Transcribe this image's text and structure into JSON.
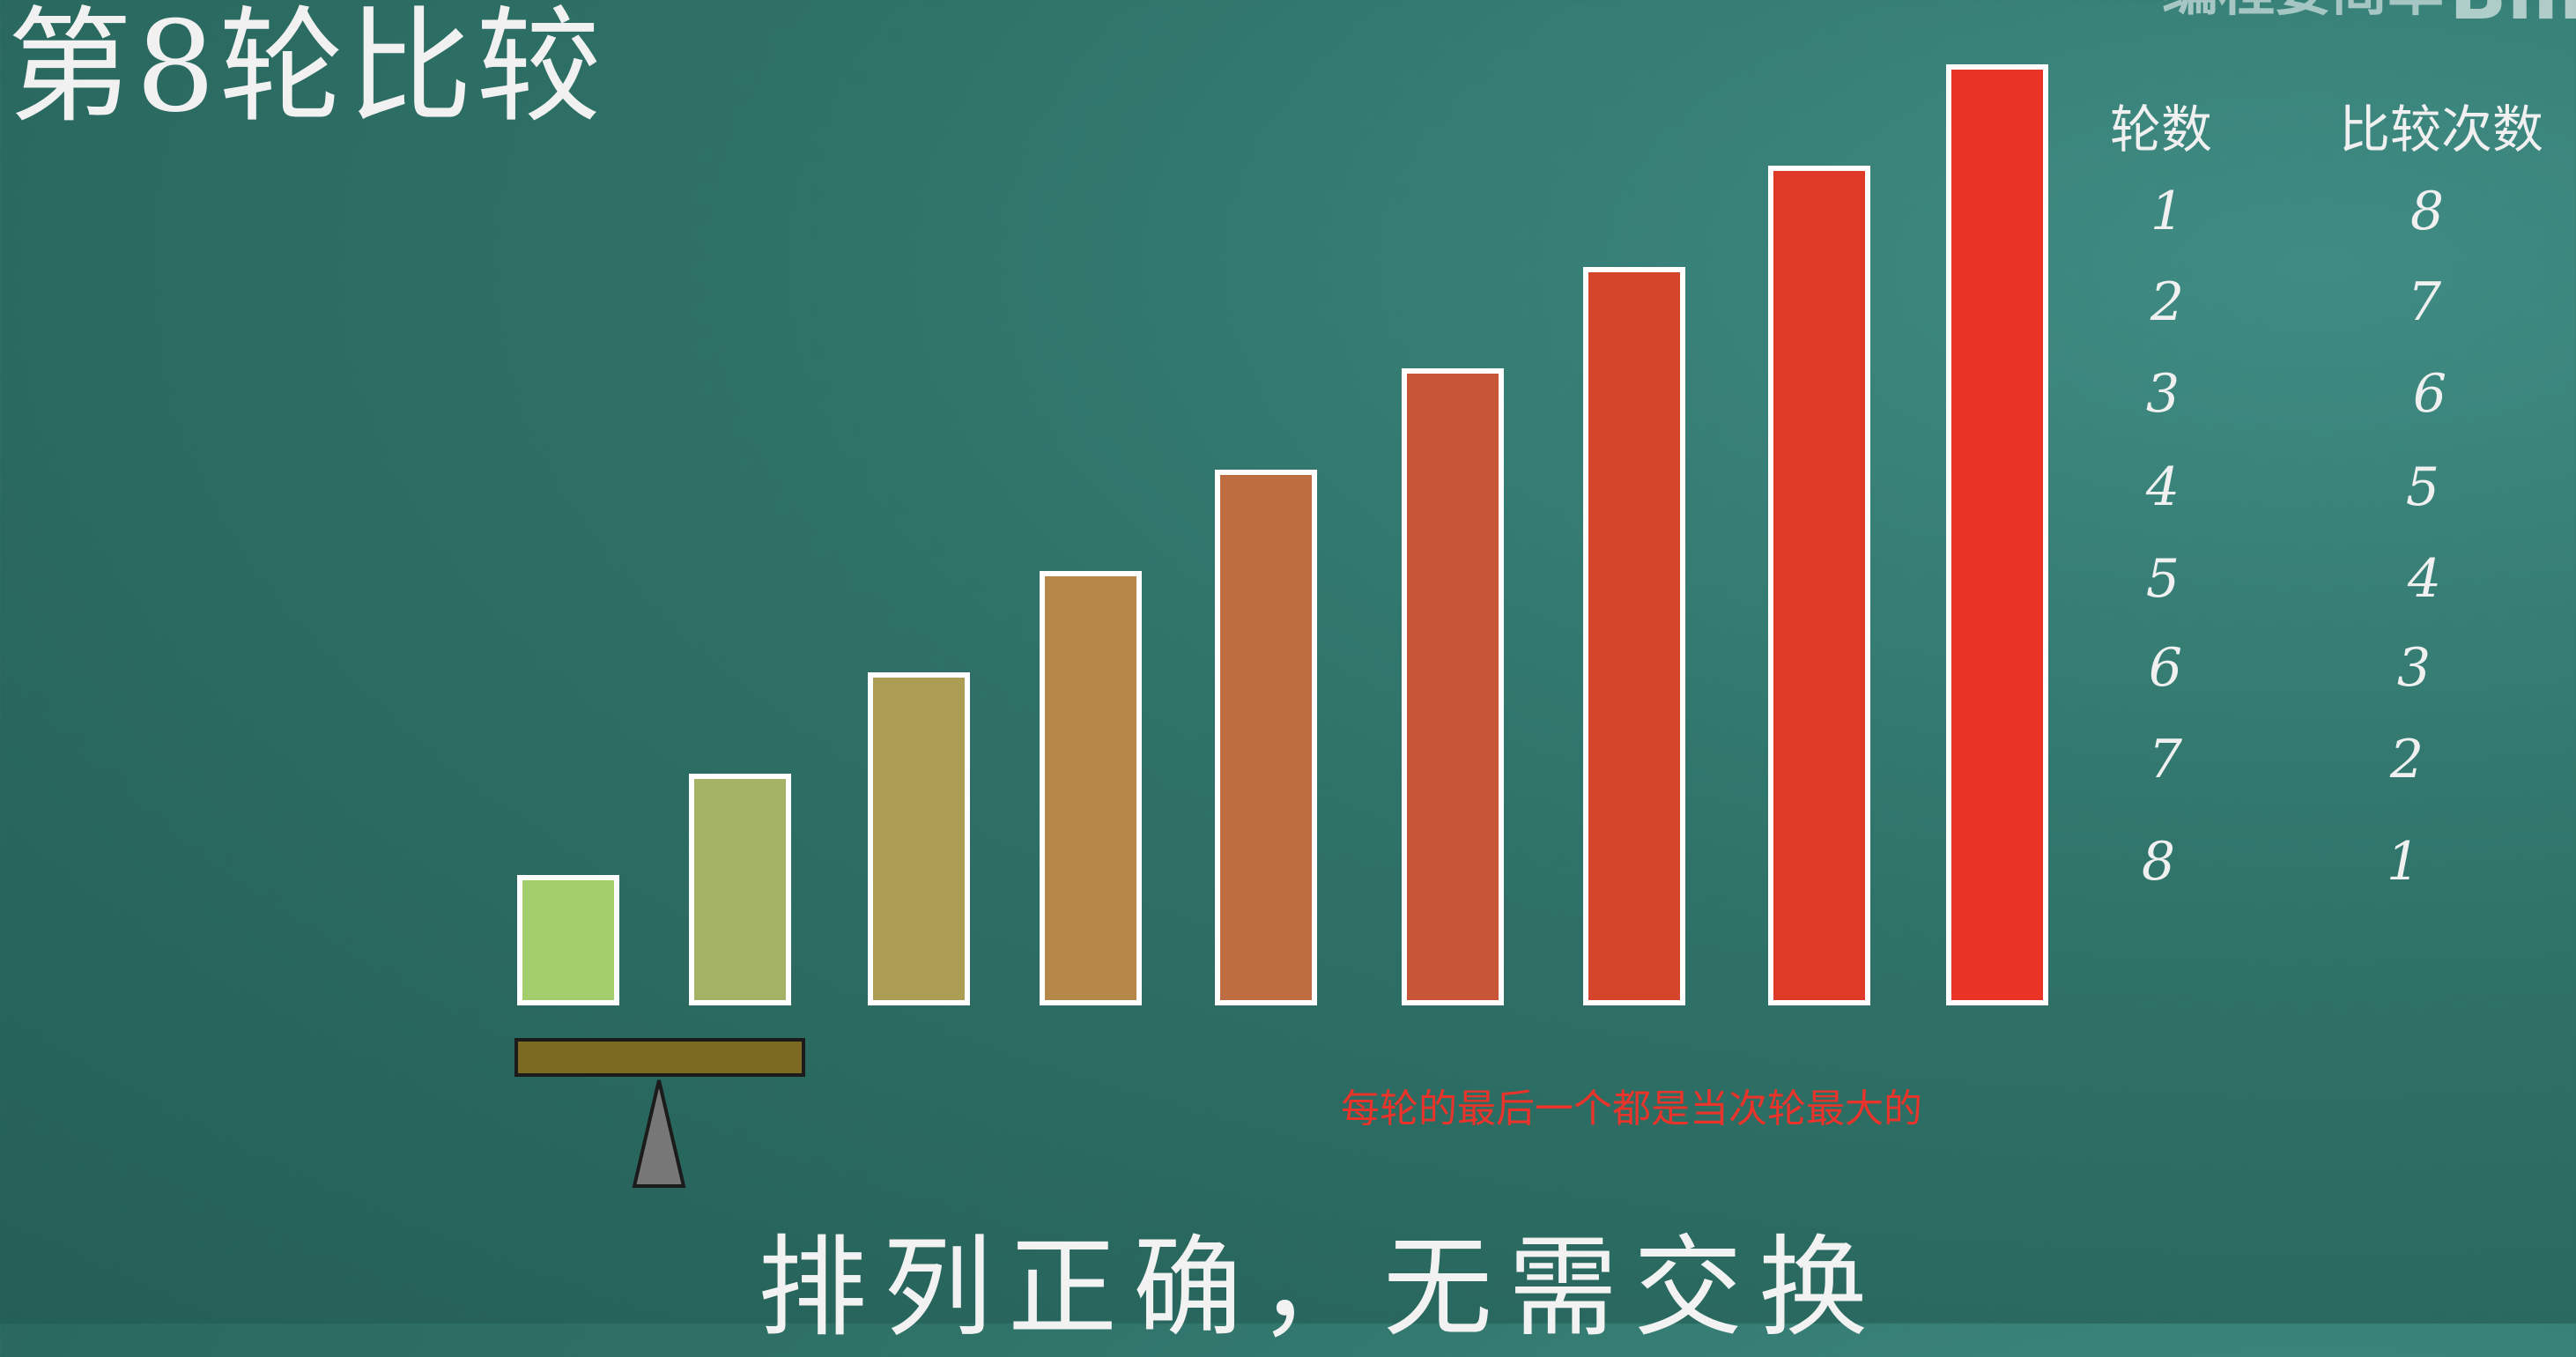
{
  "title": "第8轮比较",
  "watermark": {
    "text": "编程要简单",
    "logo": "Bili"
  },
  "bars": {
    "values": [
      1,
      2,
      3,
      4,
      5,
      6,
      7,
      8,
      9
    ],
    "colors": [
      "#a3ce6c",
      "#a3b265",
      "#ab9d54",
      "#b5884a",
      "#be6d40",
      "#c85535",
      "#d5452c",
      "#de3a27",
      "#e83325"
    ]
  },
  "table": {
    "headers": {
      "round": "轮数",
      "comparisons": "比较次数"
    },
    "rows": [
      {
        "round": "1",
        "comparisons": "8"
      },
      {
        "round": "2",
        "comparisons": "7"
      },
      {
        "round": "3",
        "comparisons": "6"
      },
      {
        "round": "4",
        "comparisons": "5"
      },
      {
        "round": "5",
        "comparisons": "4"
      },
      {
        "round": "6",
        "comparisons": "3"
      },
      {
        "round": "7",
        "comparisons": "2"
      },
      {
        "round": "8",
        "comparisons": "1"
      }
    ]
  },
  "note": "每轮的最后一个都是当次轮最大的",
  "caption": "排列正确，无需交换"
}
